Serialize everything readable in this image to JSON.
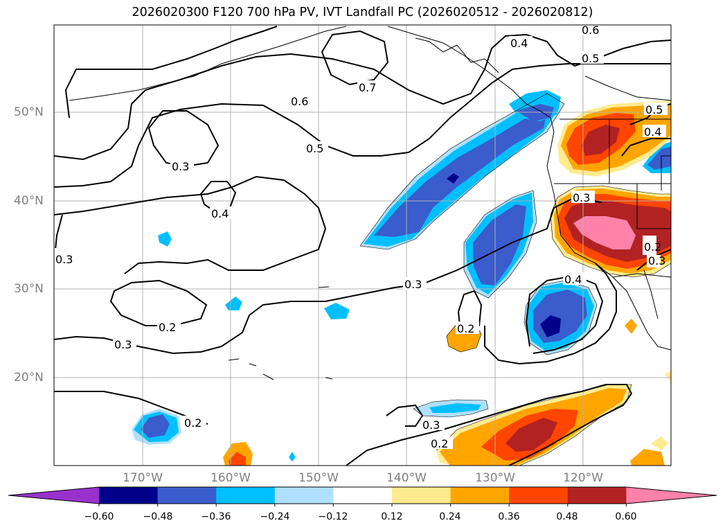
{
  "title": "2026020300 F120 700 hPa PV, IVT Landfall PC (2026020512 - 2026020812)",
  "lat_labels": [
    "50°N",
    "40°N",
    "30°N",
    "20°N"
  ],
  "lon_labels": [
    "170°W",
    "160°W",
    "150°W",
    "140°W",
    "130°W",
    "120°W"
  ],
  "contour_labels": [
    "0.6",
    "0.5",
    "0.4",
    "0.7",
    "0.6",
    "0.5",
    "0.5",
    "0.4",
    "0.3",
    "0.4",
    "0.3",
    "0.3",
    "0.3",
    "0.4",
    "0.2",
    "0.3",
    "0.2",
    "0.2",
    "0.3",
    "0.2",
    "0.2",
    "0.3"
  ],
  "colorbar": {
    "tick_labels": [
      "−0.60",
      "−0.48",
      "−0.36",
      "−0.24",
      "−0.12",
      "0.12",
      "0.24",
      "0.36",
      "0.48",
      "0.60"
    ],
    "colors": [
      "#9932cc",
      "#00008b",
      "#3a5ccc",
      "#00bfff",
      "#b0e0ff",
      "#ffffff",
      "#ffeb8f",
      "#ffa500",
      "#ff4500",
      "#b22222",
      "#ff82ab"
    ]
  }
}
